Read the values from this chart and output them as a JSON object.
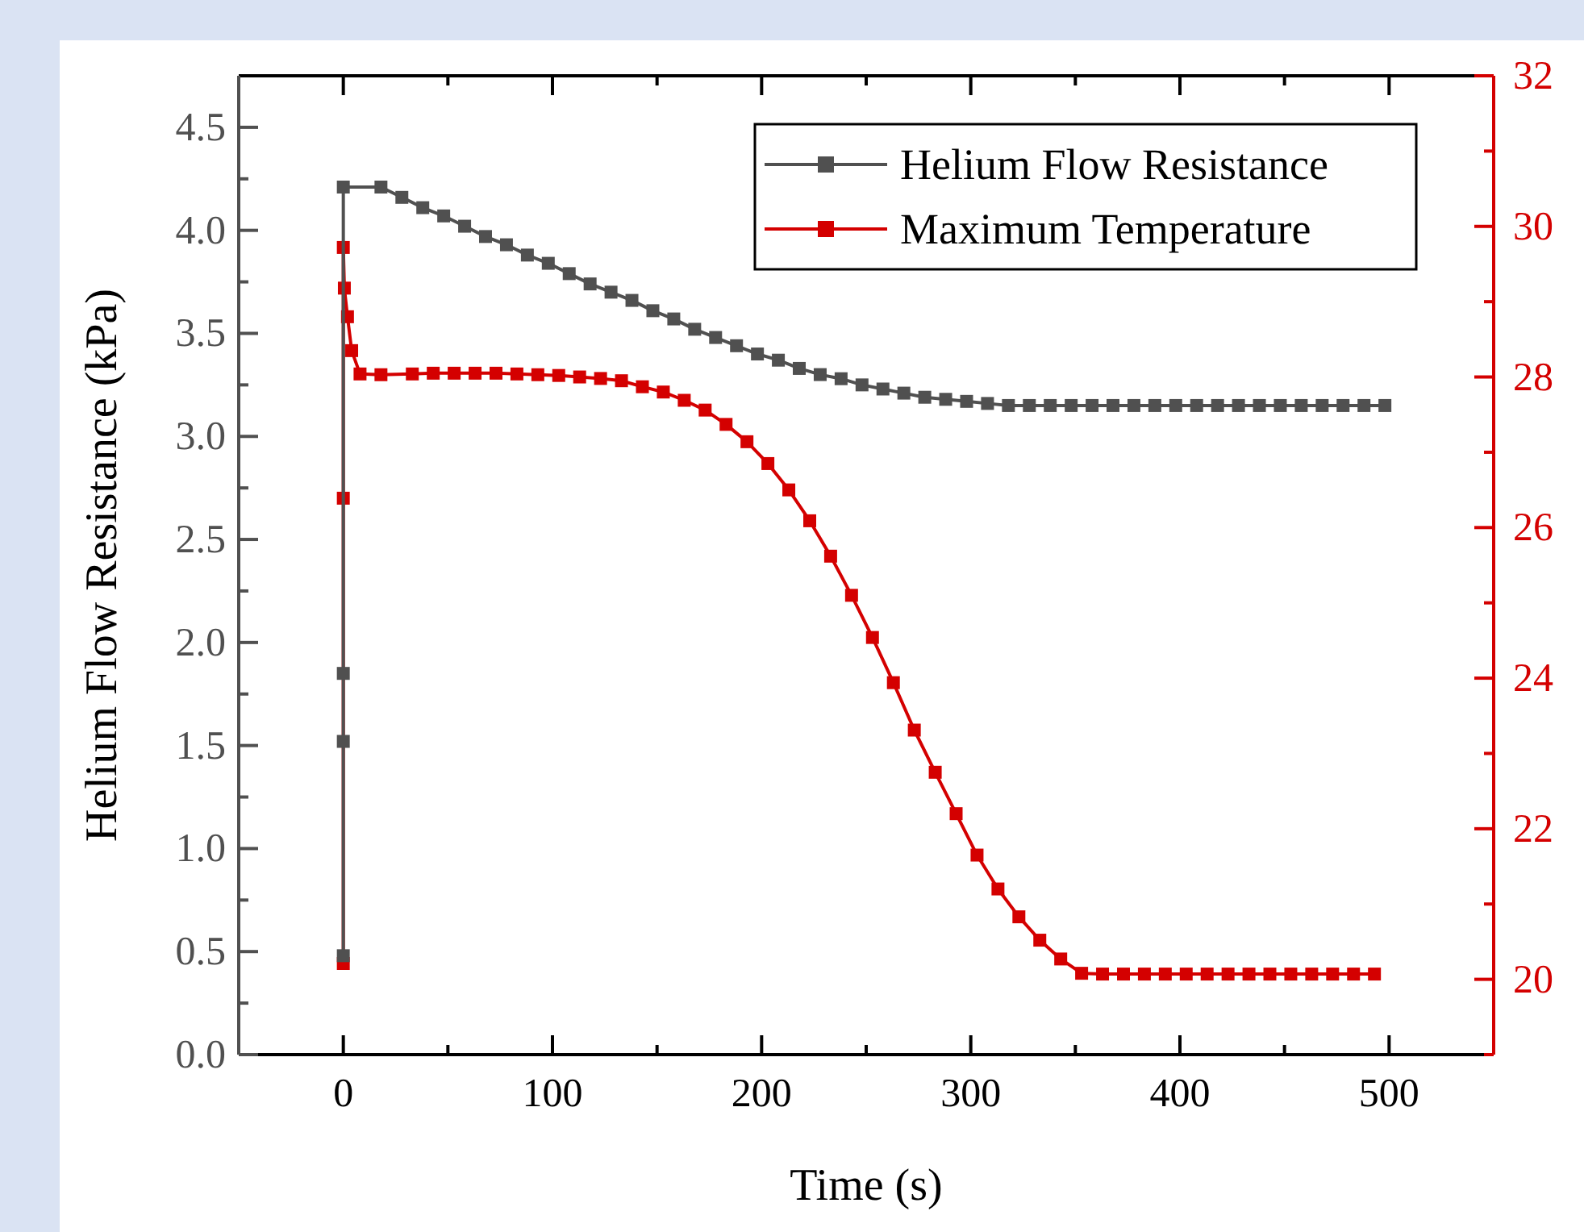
{
  "chart_data": {
    "type": "line",
    "xlabel": "Time (s)",
    "ylabel": "Helium Flow Resistance (kPa)",
    "legend": "top right",
    "marker": "square",
    "line_style": "solid",
    "grid": false,
    "xlim": [
      -50,
      550
    ],
    "xticks": [
      {
        "value": -50,
        "label": null
      },
      0,
      {
        "value": 50,
        "label": null
      },
      100,
      {
        "value": 150,
        "label": null
      },
      200,
      {
        "value": 250,
        "label": null
      },
      300,
      {
        "value": 350,
        "label": null
      },
      400,
      {
        "value": 450,
        "label": null
      },
      500
    ],
    "ylim": [
      0,
      4.75
    ],
    "yticks": [
      {
        "value": 0,
        "label": "0.0"
      },
      {
        "value": 0.25,
        "label": null
      },
      0.5,
      {
        "value": 0.75,
        "label": null
      },
      {
        "value": 1,
        "label": "1.0"
      },
      {
        "value": 1.25,
        "label": null
      },
      1.5,
      {
        "value": 1.75,
        "label": null
      },
      {
        "value": 2,
        "label": "2.0"
      },
      {
        "value": 2.25,
        "label": null
      },
      2.5,
      {
        "value": 2.75,
        "label": null
      },
      {
        "value": 3,
        "label": "3.0"
      },
      {
        "value": 3.25,
        "label": null
      },
      3.5,
      {
        "value": 3.75,
        "label": null
      },
      {
        "value": 4,
        "label": "4.0"
      },
      {
        "value": 4.25,
        "label": null
      },
      4.5
    ],
    "y2lim": [
      19,
      32
    ],
    "y2ticks": [
      {
        "value": 19,
        "label": null
      },
      20,
      {
        "value": 21,
        "label": null
      },
      22,
      {
        "value": 23,
        "label": null
      },
      24,
      {
        "value": 25,
        "label": null
      },
      26,
      {
        "value": 27,
        "label": null
      },
      28,
      {
        "value": 29,
        "label": null
      },
      30,
      {
        "value": 31,
        "label": null
      },
      32
    ],
    "series": [
      {
        "name": "Helium Flow Resistance",
        "color": "#505050",
        "x": [
          0,
          0,
          0,
          0,
          18,
          28,
          38,
          48,
          58,
          68,
          78,
          88,
          98,
          108,
          118,
          128,
          138,
          148,
          158,
          168,
          178,
          188,
          198,
          208,
          218,
          228,
          238,
          248,
          258,
          268,
          278,
          288,
          298,
          308,
          318,
          328,
          338,
          348,
          358,
          368,
          378,
          388,
          398,
          408,
          418,
          428,
          438,
          448,
          458,
          468,
          478,
          488,
          498
        ],
        "values": [
          0.48,
          1.52,
          1.85,
          4.21,
          4.21,
          4.16,
          4.11,
          4.07,
          4.02,
          3.97,
          3.93,
          3.88,
          3.84,
          3.79,
          3.74,
          3.7,
          3.66,
          3.61,
          3.57,
          3.52,
          3.48,
          3.44,
          3.4,
          3.37,
          3.33,
          3.3,
          3.28,
          3.25,
          3.23,
          3.21,
          3.19,
          3.18,
          3.17,
          3.16,
          3.15,
          3.15,
          3.15,
          3.15,
          3.15,
          3.15,
          3.15,
          3.15,
          3.15,
          3.15,
          3.15,
          3.15,
          3.15,
          3.15,
          3.15,
          3.15,
          3.15,
          3.15,
          3.15
        ]
      },
      {
        "name": "Maximum Temperature",
        "color": "#d40000",
        "axis": "y2",
        "x": [
          0,
          0,
          0,
          0.5,
          2,
          4,
          8,
          18,
          33,
          43,
          53,
          63,
          73,
          83,
          93,
          103,
          113,
          123,
          133,
          143,
          153,
          163,
          173,
          183,
          193,
          203,
          213,
          223,
          233,
          243,
          253,
          263,
          273,
          283,
          293,
          303,
          313,
          323,
          333,
          343,
          353,
          363,
          373,
          383,
          393,
          403,
          413,
          423,
          433,
          443,
          453,
          463,
          473,
          483,
          493
        ],
        "values": [
          20.21,
          26.39,
          29.72,
          29.18,
          28.8,
          28.35,
          28.04,
          28.03,
          28.04,
          28.05,
          28.05,
          28.05,
          28.05,
          28.04,
          28.03,
          28.02,
          28.0,
          27.98,
          27.95,
          27.87,
          27.8,
          27.69,
          27.56,
          27.37,
          27.14,
          26.85,
          26.5,
          26.09,
          25.62,
          25.1,
          24.54,
          23.94,
          23.31,
          22.75,
          22.2,
          21.65,
          21.2,
          20.83,
          20.52,
          20.27,
          20.08,
          20.07,
          20.07,
          20.07,
          20.07,
          20.07,
          20.07,
          20.07,
          20.07,
          20.07,
          20.07,
          20.07,
          20.07,
          20.07,
          20.07
        ]
      }
    ]
  }
}
